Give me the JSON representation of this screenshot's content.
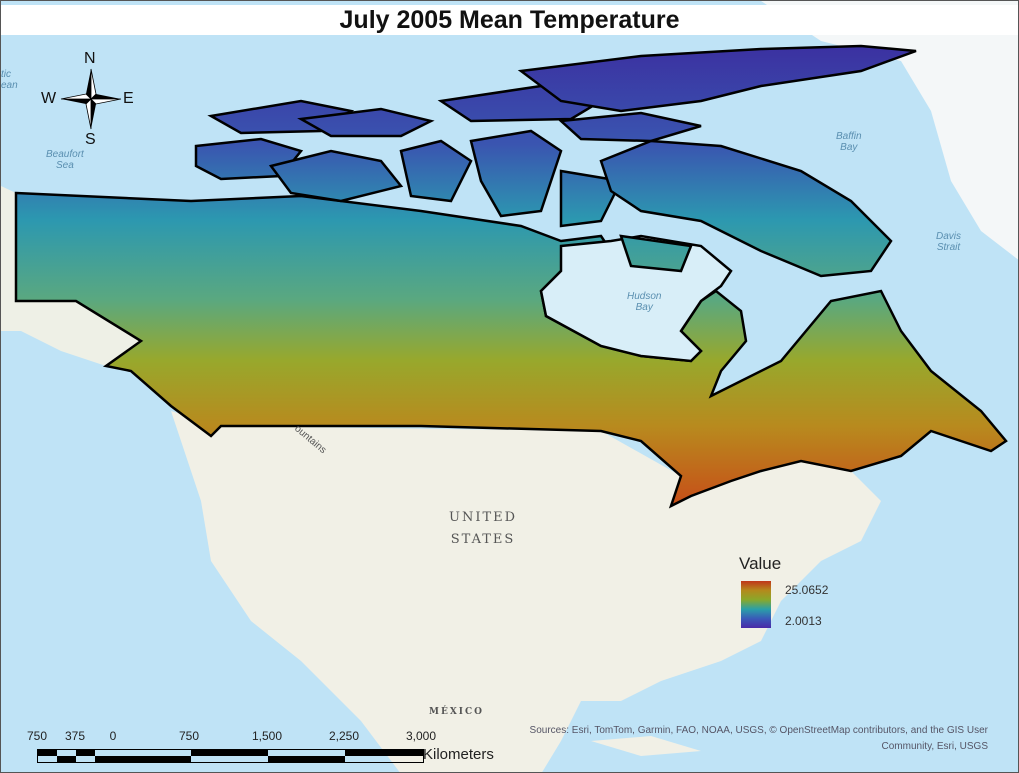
{
  "title": "July 2005 Mean Temperature",
  "compass": {
    "n": "N",
    "s": "S",
    "e": "E",
    "w": "W"
  },
  "water_labels": {
    "arctic": "tic\nean",
    "beaufort": "Beaufort\nSea",
    "baffin": "Baffin\nBay",
    "davis": "Davis\nStrait",
    "hudson": "Hudson\nBay"
  },
  "land_labels": {
    "us": "UNITED\nSTATES",
    "mexico": "MÉXICO",
    "mountains": "ountains"
  },
  "legend": {
    "title": "Value",
    "max": "25.0652",
    "min": "2.0013",
    "colors": [
      "#c0361a",
      "#b48a1c",
      "#8aa82a",
      "#2aa0a8",
      "#3a5ab8",
      "#4a2aa8"
    ]
  },
  "scale_bar": {
    "ticks": [
      "750",
      "375",
      "0",
      "750",
      "1,500",
      "2,250",
      "3,000"
    ],
    "units": "Kilometers"
  },
  "credits": {
    "line1": "Sources: Esri, TomTom, Garmin, FAO, NOAA, USGS, © OpenStreetMap contributors, and the GIS User",
    "line2": "Community, Esri, USGS"
  }
}
